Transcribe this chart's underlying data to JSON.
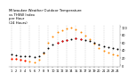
{
  "title": "Milwaukee Weather Outdoor Temperature\nvs THSW Index\nper Hour\n(24 Hours)",
  "title_fontsize": 2.8,
  "background_color": "#ffffff",
  "grid_color": "#b0b0b0",
  "xlim": [
    0.5,
    24.5
  ],
  "ylim": [
    -5,
    105
  ],
  "ytick_values": [
    0,
    20,
    40,
    60,
    80,
    100
  ],
  "ytick_labels": [
    "0",
    "20",
    "40",
    "60",
    "80",
    "100"
  ],
  "xtick_values": [
    1,
    2,
    3,
    4,
    5,
    6,
    7,
    8,
    9,
    10,
    11,
    12,
    13,
    14,
    15,
    16,
    17,
    18,
    19,
    20,
    21,
    22,
    23,
    24
  ],
  "xtick_labels": [
    "1",
    "2",
    "3",
    "4",
    "5",
    "6",
    "7",
    "8",
    "9",
    "10",
    "11",
    "12",
    "13",
    "14",
    "15",
    "16",
    "17",
    "18",
    "19",
    "20",
    "21",
    "22",
    "23",
    "24"
  ],
  "tick_fontsize": 2.5,
  "vgrid_positions": [
    1,
    3,
    5,
    7,
    9,
    11,
    13,
    15,
    17,
    19,
    21,
    23
  ],
  "hours": [
    1,
    2,
    3,
    4,
    5,
    6,
    7,
    8,
    9,
    10,
    11,
    12,
    13,
    14,
    15,
    16,
    17,
    18,
    19,
    20,
    21,
    22,
    23,
    24
  ],
  "temp": [
    28,
    27,
    25,
    24,
    23,
    22,
    25,
    34,
    44,
    54,
    60,
    64,
    67,
    69,
    70,
    69,
    66,
    63,
    59,
    54,
    50,
    47,
    44,
    42
  ],
  "thsw": [
    18,
    16,
    14,
    12,
    10,
    8,
    14,
    32,
    58,
    75,
    86,
    92,
    96,
    98,
    95,
    88,
    78,
    68,
    57,
    46,
    38,
    33,
    28,
    26
  ],
  "temp_color": "#000000",
  "thsw_color": "#ff8800",
  "red_color": "#ff0000",
  "red_hours_temp": [
    11,
    12,
    13,
    15,
    16
  ],
  "red_temp": [
    60,
    64,
    67,
    70,
    69
  ],
  "red_hours_thsw": [
    1,
    2,
    3,
    4
  ],
  "red_thsw": [
    18,
    16,
    14,
    12
  ],
  "dot_size": 2.0,
  "line_width": 0.3
}
